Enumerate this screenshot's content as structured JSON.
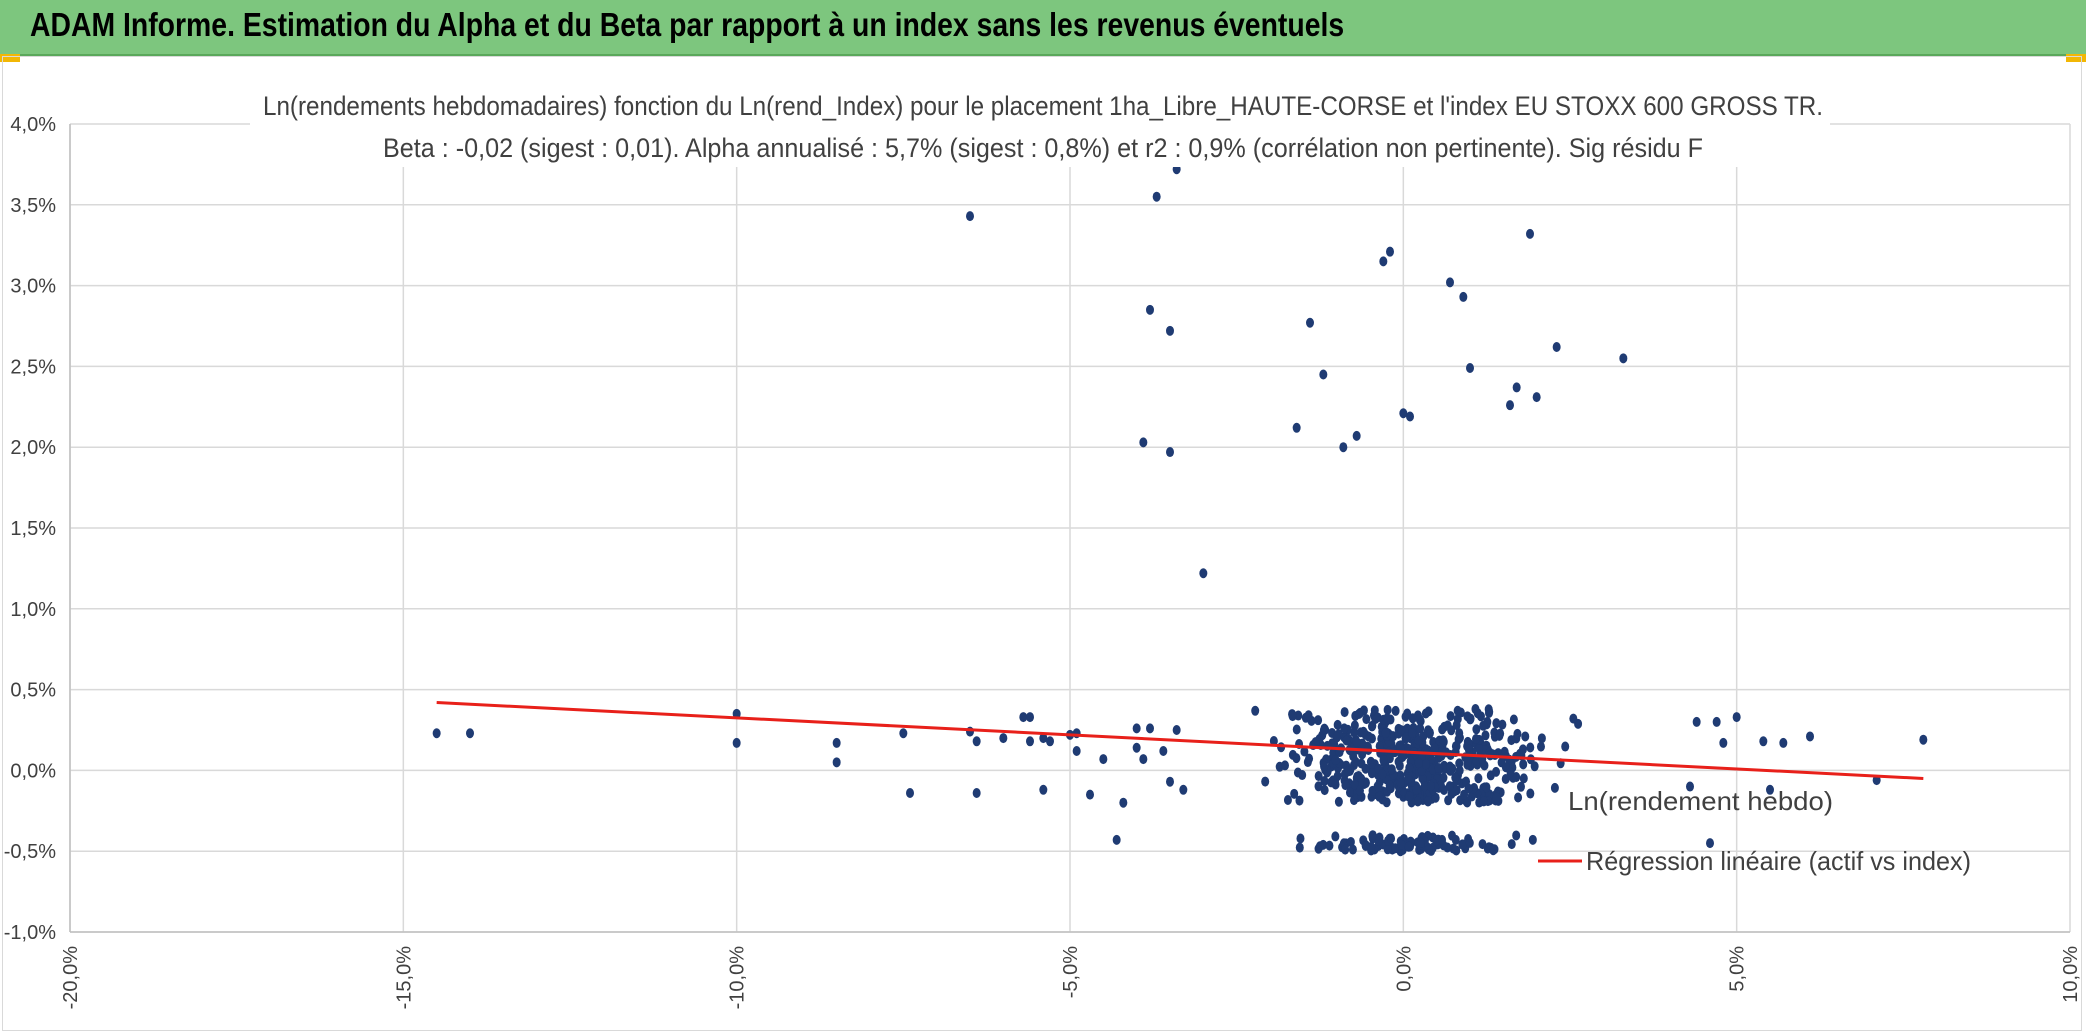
{
  "header": {
    "title": "ADAM Informe. Estimation du Alpha et du Beta par rapport à un index sans les revenus éventuels"
  },
  "colors": {
    "header_bg": "#7dc67e",
    "points": "#1f3b73",
    "regression": "#e8201a",
    "accent": "#f2b705"
  },
  "chart_data": {
    "type": "scatter",
    "title": "Ln(rendements hebdomadaires) fonction du Ln(rend_Index) pour le placement 1ha_Libre_HAUTE-CORSE et l'index EU STOXX 600 GROSS TR.",
    "subtitle": "Beta : -0,02 (sigest : 0,01). Alpha annualisé : 5,7% (sigest : 0,8%) et r2 : 0,9% (corrélation non pertinente). Sig résidu F",
    "xlabel": "",
    "ylabel": "",
    "xlim": [
      -20,
      10
    ],
    "ylim": [
      -1,
      4
    ],
    "x_ticks": [
      -20,
      -15,
      -10,
      -5,
      0,
      5,
      10
    ],
    "y_ticks": [
      -1,
      -0.5,
      0,
      0.5,
      1,
      1.5,
      2,
      2.5,
      3,
      3.5,
      4
    ],
    "x_tick_labels": [
      "-20,0%",
      "-15,0%",
      "-10,0%",
      "-5,0%",
      "0,0%",
      "5,0%",
      "10,0%"
    ],
    "y_tick_labels": [
      "-1,0%",
      "-0,5%",
      "0,0%",
      "0,5%",
      "1,0%",
      "1,5%",
      "2,0%",
      "2,5%",
      "3,0%",
      "3,5%",
      "4,0%"
    ],
    "grid": true,
    "legend": {
      "position": "right",
      "entries": [
        "Ln(rendement hebdo)",
        "Régression linéaire (actif vs index)"
      ]
    },
    "series": [
      {
        "name": "Ln(rendement hebdo)",
        "type": "scatter",
        "outliers": [
          [
            -6.5,
            3.43
          ],
          [
            -3.7,
            3.55
          ],
          [
            -3.4,
            3.72
          ],
          [
            -3.8,
            2.85
          ],
          [
            -3.5,
            2.72
          ],
          [
            -3.9,
            2.03
          ],
          [
            -3.5,
            1.97
          ],
          [
            -3.0,
            1.22
          ],
          [
            -1.6,
            2.12
          ],
          [
            -1.4,
            2.77
          ],
          [
            -1.2,
            2.45
          ],
          [
            -0.9,
            2.0
          ],
          [
            -0.7,
            2.07
          ],
          [
            -0.3,
            3.15
          ],
          [
            -0.2,
            3.21
          ],
          [
            0.0,
            2.21
          ],
          [
            0.1,
            2.19
          ],
          [
            0.7,
            3.02
          ],
          [
            0.9,
            2.93
          ],
          [
            1.0,
            2.49
          ],
          [
            1.6,
            2.26
          ],
          [
            1.7,
            2.37
          ],
          [
            1.9,
            3.32
          ],
          [
            2.0,
            2.31
          ],
          [
            2.3,
            2.62
          ],
          [
            3.3,
            2.55
          ]
        ],
        "sparse_points": [
          [
            -14.5,
            0.23
          ],
          [
            -14.0,
            0.23
          ],
          [
            -10.0,
            0.35
          ],
          [
            -10.0,
            0.17
          ],
          [
            -8.5,
            0.17
          ],
          [
            -8.5,
            0.05
          ],
          [
            -7.5,
            0.23
          ],
          [
            -7.4,
            -0.14
          ],
          [
            -6.5,
            0.24
          ],
          [
            -6.4,
            0.18
          ],
          [
            -6.4,
            -0.14
          ],
          [
            -6.0,
            0.2
          ],
          [
            -5.7,
            0.33
          ],
          [
            -5.6,
            0.33
          ],
          [
            -5.6,
            0.18
          ],
          [
            -5.4,
            0.2
          ],
          [
            -5.4,
            -0.12
          ],
          [
            -5.3,
            0.18
          ],
          [
            -5.0,
            0.22
          ],
          [
            -4.9,
            0.23
          ],
          [
            -4.9,
            0.12
          ],
          [
            -4.7,
            -0.15
          ],
          [
            -4.5,
            0.07
          ],
          [
            -4.3,
            -0.43
          ],
          [
            -4.2,
            -0.2
          ],
          [
            -4.0,
            0.26
          ],
          [
            -4.0,
            0.14
          ],
          [
            -3.9,
            0.07
          ],
          [
            -3.8,
            0.26
          ],
          [
            -3.6,
            0.12
          ],
          [
            -3.5,
            -0.07
          ],
          [
            -3.4,
            0.25
          ],
          [
            -3.3,
            -0.12
          ],
          [
            4.3,
            -0.1
          ],
          [
            4.4,
            0.3
          ],
          [
            4.6,
            -0.45
          ],
          [
            4.7,
            0.3
          ],
          [
            4.8,
            0.17
          ],
          [
            5.0,
            0.33
          ],
          [
            5.4,
            0.18
          ],
          [
            5.5,
            -0.12
          ],
          [
            5.7,
            0.17
          ],
          [
            6.1,
            0.21
          ],
          [
            7.1,
            -0.06
          ],
          [
            7.8,
            0.19
          ]
        ],
        "dense_cluster": {
          "x_range": [
            -3.2,
            4.2
          ],
          "x_center": 0.2,
          "y_range": [
            -0.5,
            0.38
          ],
          "count": 620
        }
      },
      {
        "name": "Régression linéaire (actif vs index)",
        "type": "line",
        "x": [
          -14.5,
          7.8
        ],
        "y": [
          0.42,
          -0.05
        ]
      }
    ]
  }
}
